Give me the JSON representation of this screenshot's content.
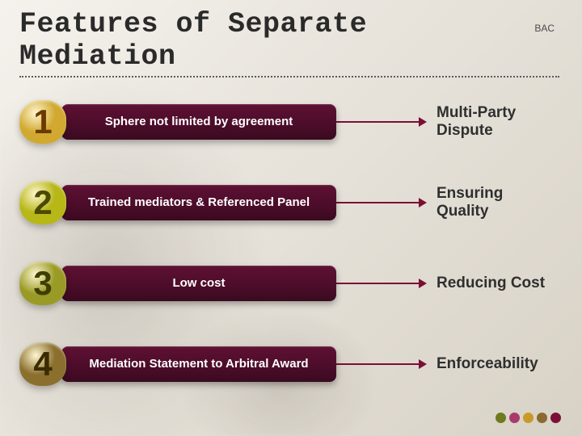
{
  "title": "Features of Separate Mediation",
  "title_font_family": "Courier New, monospace",
  "title_fontsize": 35,
  "corner_label": "BAC",
  "background_color": "#efece5",
  "separator_color": "#5a5a5a",
  "bar_gradient_top": "#5e1033",
  "bar_gradient_bottom": "#3a0a20",
  "bar_text_color": "#ffffff",
  "connector_color": "#7a0f36",
  "benefit_text_color": "#2f2f2f",
  "benefit_fontsize": 19,
  "items": [
    {
      "num": "1",
      "num_bg": "#d1a930",
      "num_fg": "#6a3a00",
      "bar_label": "Sphere not limited by agreement",
      "benefit": "Multi-Party Dispute"
    },
    {
      "num": "2",
      "num_bg": "#b7b718",
      "num_fg": "#4a4a00",
      "bar_label": "Trained mediators & Referenced Panel",
      "benefit": "Ensuring Quality"
    },
    {
      "num": "3",
      "num_bg": "#9a9b26",
      "num_fg": "#3e3e00",
      "bar_label": "Low cost",
      "benefit": "Reducing Cost"
    },
    {
      "num": "4",
      "num_bg": "#8a6f2e",
      "num_fg": "#3a2b00",
      "bar_label": "Mediation Statement to Arbitral Award",
      "benefit": "Enforceability"
    }
  ],
  "footer_dots": [
    "#6d7a1e",
    "#a93a6b",
    "#c79a2a",
    "#8b6a2f",
    "#7a1038"
  ]
}
